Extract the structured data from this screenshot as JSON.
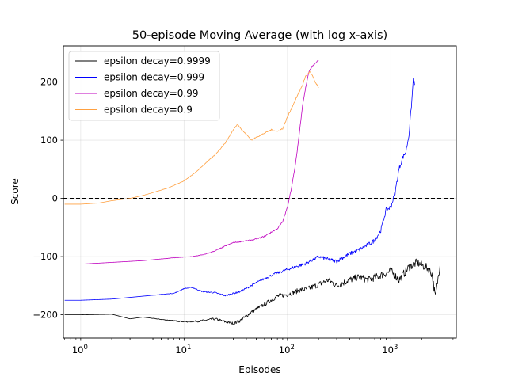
{
  "chart_data": {
    "type": "line",
    "title": "50-episode Moving Average (with log x-axis)",
    "xlabel": "Episodes",
    "ylabel": "Score",
    "xscale": "log",
    "xlim": [
      0.68,
      4300
    ],
    "ylim": [
      -240,
      262
    ],
    "grid": true,
    "legend_position": "top-left",
    "x_ticks": [
      {
        "value": 1,
        "base": "10",
        "exp": "0"
      },
      {
        "value": 10,
        "base": "10",
        "exp": "1"
      },
      {
        "value": 100,
        "base": "10",
        "exp": "2"
      },
      {
        "value": 1000,
        "base": "10",
        "exp": "3"
      }
    ],
    "y_ticks": [
      {
        "value": -200,
        "label": "−200"
      },
      {
        "value": -100,
        "label": "−100"
      },
      {
        "value": 0,
        "label": "0"
      },
      {
        "value": 100,
        "label": "100"
      },
      {
        "value": 200,
        "label": "200"
      }
    ],
    "reference_lines": [
      {
        "y": 0,
        "style": "dashed",
        "color": "#000000"
      },
      {
        "y": 200,
        "style": "dotted",
        "color": "#000000"
      }
    ],
    "series": [
      {
        "name": "epsilon decay=0.9999",
        "color": "#000000",
        "noise": 7,
        "points": [
          [
            0.7,
            -200
          ],
          [
            1,
            -200
          ],
          [
            2,
            -199
          ],
          [
            3,
            -207
          ],
          [
            4,
            -204
          ],
          [
            6,
            -208
          ],
          [
            10,
            -212
          ],
          [
            14,
            -211
          ],
          [
            20,
            -207
          ],
          [
            25,
            -212
          ],
          [
            30,
            -215
          ],
          [
            35,
            -210
          ],
          [
            45,
            -195
          ],
          [
            60,
            -182
          ],
          [
            80,
            -168
          ],
          [
            100,
            -165
          ],
          [
            130,
            -158
          ],
          [
            160,
            -155
          ],
          [
            200,
            -148
          ],
          [
            250,
            -140
          ],
          [
            300,
            -150
          ],
          [
            400,
            -140
          ],
          [
            500,
            -135
          ],
          [
            600,
            -140
          ],
          [
            800,
            -132
          ],
          [
            1000,
            -125
          ],
          [
            1200,
            -140
          ],
          [
            1500,
            -118
          ],
          [
            1800,
            -110
          ],
          [
            2000,
            -115
          ],
          [
            2300,
            -120
          ],
          [
            2500,
            -130
          ],
          [
            2700,
            -170
          ],
          [
            2800,
            -150
          ],
          [
            3000,
            -112
          ]
        ]
      },
      {
        "name": "epsilon decay=0.999",
        "color": "#0000ff",
        "noise": 4,
        "points": [
          [
            0.7,
            -175
          ],
          [
            1,
            -175
          ],
          [
            2,
            -173
          ],
          [
            4,
            -168
          ],
          [
            8,
            -163
          ],
          [
            10,
            -155
          ],
          [
            12,
            -153
          ],
          [
            15,
            -160
          ],
          [
            20,
            -162
          ],
          [
            25,
            -167
          ],
          [
            35,
            -160
          ],
          [
            50,
            -145
          ],
          [
            70,
            -132
          ],
          [
            100,
            -122
          ],
          [
            150,
            -112
          ],
          [
            200,
            -100
          ],
          [
            250,
            -105
          ],
          [
            300,
            -108
          ],
          [
            400,
            -95
          ],
          [
            500,
            -88
          ],
          [
            600,
            -80
          ],
          [
            700,
            -72
          ],
          [
            800,
            -55
          ],
          [
            900,
            -20
          ],
          [
            1000,
            -15
          ],
          [
            1100,
            10
          ],
          [
            1200,
            50
          ],
          [
            1300,
            70
          ],
          [
            1400,
            80
          ],
          [
            1500,
            110
          ],
          [
            1600,
            170
          ],
          [
            1650,
            205
          ],
          [
            1700,
            195
          ]
        ]
      },
      {
        "name": "epsilon decay=0.99",
        "color": "#bf00bf",
        "noise": 2,
        "points": [
          [
            0.7,
            -113
          ],
          [
            1,
            -113
          ],
          [
            2,
            -110
          ],
          [
            4,
            -107
          ],
          [
            8,
            -102
          ],
          [
            12,
            -100
          ],
          [
            16,
            -96
          ],
          [
            20,
            -90
          ],
          [
            25,
            -82
          ],
          [
            30,
            -76
          ],
          [
            40,
            -73
          ],
          [
            50,
            -70
          ],
          [
            60,
            -65
          ],
          [
            70,
            -58
          ],
          [
            80,
            -52
          ],
          [
            90,
            -40
          ],
          [
            100,
            -15
          ],
          [
            110,
            20
          ],
          [
            120,
            60
          ],
          [
            130,
            110
          ],
          [
            140,
            160
          ],
          [
            150,
            190
          ],
          [
            160,
            215
          ],
          [
            170,
            225
          ],
          [
            180,
            230
          ],
          [
            200,
            237
          ]
        ]
      },
      {
        "name": "epsilon decay=0.9",
        "color": "#ffa040",
        "noise": 2,
        "points": [
          [
            0.7,
            -10
          ],
          [
            1,
            -10
          ],
          [
            1.5,
            -8
          ],
          [
            2,
            -4
          ],
          [
            3,
            0
          ],
          [
            4,
            5
          ],
          [
            5,
            10
          ],
          [
            7,
            18
          ],
          [
            10,
            30
          ],
          [
            13,
            45
          ],
          [
            16,
            60
          ],
          [
            20,
            75
          ],
          [
            25,
            95
          ],
          [
            30,
            118
          ],
          [
            33,
            128
          ],
          [
            36,
            118
          ],
          [
            40,
            110
          ],
          [
            45,
            100
          ],
          [
            50,
            105
          ],
          [
            60,
            112
          ],
          [
            70,
            118
          ],
          [
            80,
            115
          ],
          [
            90,
            120
          ],
          [
            100,
            140
          ],
          [
            120,
            170
          ],
          [
            140,
            195
          ],
          [
            150,
            210
          ],
          [
            165,
            218
          ],
          [
            175,
            210
          ],
          [
            185,
            200
          ],
          [
            200,
            190
          ]
        ]
      }
    ]
  }
}
